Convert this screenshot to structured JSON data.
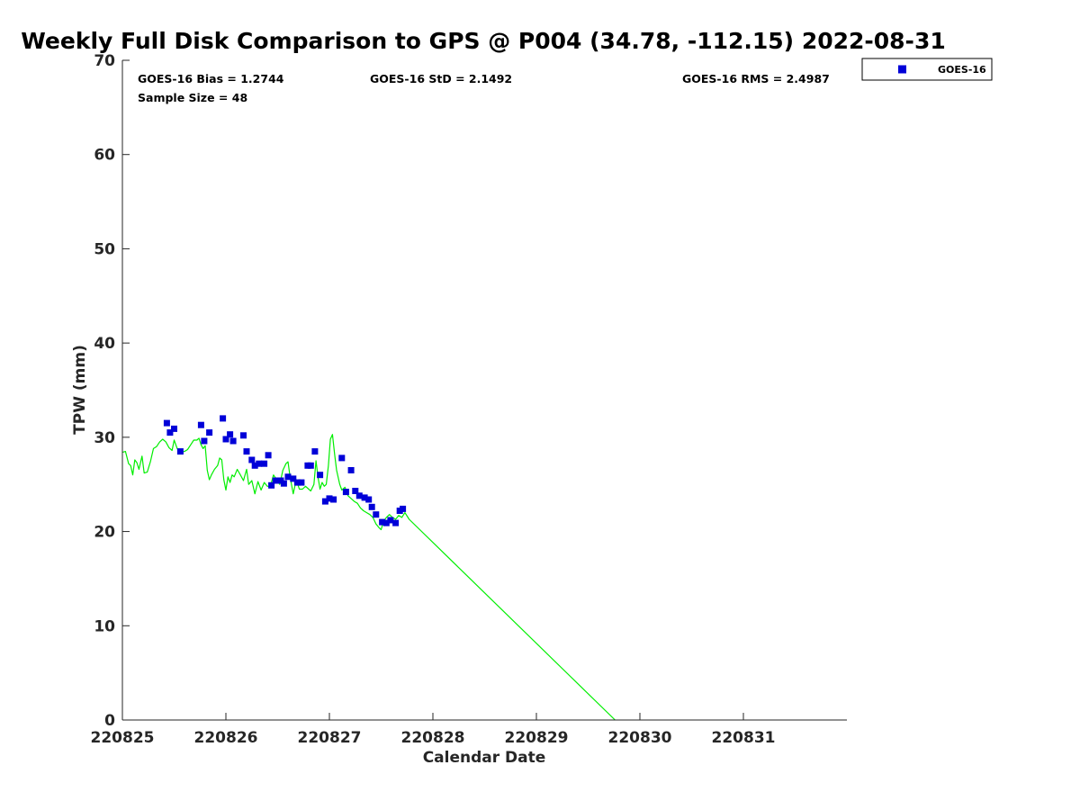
{
  "chart_data": {
    "type": "scatter",
    "title": "Weekly Full Disk Comparison to GPS @ P004 (34.78, -112.15) 2022-08-31",
    "xlabel": "Calendar Date",
    "ylabel": "TPW (mm)",
    "xlim": [
      0,
      7
    ],
    "ylim": [
      0,
      70
    ],
    "x_ticks": [
      {
        "value": 0,
        "label": "220825"
      },
      {
        "value": 1,
        "label": "220826"
      },
      {
        "value": 2,
        "label": "220827"
      },
      {
        "value": 3,
        "label": "220828"
      },
      {
        "value": 4,
        "label": "220829"
      },
      {
        "value": 5,
        "label": "220830"
      },
      {
        "value": 6,
        "label": "220831"
      }
    ],
    "y_ticks": [
      {
        "value": 0,
        "label": "0"
      },
      {
        "value": 10,
        "label": "10"
      },
      {
        "value": 20,
        "label": "20"
      },
      {
        "value": 30,
        "label": "30"
      },
      {
        "value": 40,
        "label": "40"
      },
      {
        "value": 50,
        "label": "50"
      },
      {
        "value": 60,
        "label": "60"
      },
      {
        "value": 70,
        "label": "70"
      }
    ],
    "stats": {
      "bias": "GOES-16 Bias = 1.2744",
      "std": "GOES-16 StD = 2.1492",
      "rms": "GOES-16 RMS = 2.4987",
      "sample": "Sample Size = 48"
    },
    "legend": {
      "label": "GOES-16",
      "position": "top-right, outside plot"
    },
    "series": [
      {
        "name": "GOES-16",
        "kind": "markers",
        "color": "#0000d8",
        "points": [
          [
            0.43,
            31.5
          ],
          [
            0.46,
            30.5
          ],
          [
            0.5,
            30.9
          ],
          [
            0.56,
            28.5
          ],
          [
            0.76,
            31.3
          ],
          [
            0.79,
            29.6
          ],
          [
            0.84,
            30.5
          ],
          [
            0.97,
            32.0
          ],
          [
            1.0,
            29.8
          ],
          [
            1.04,
            30.3
          ],
          [
            1.07,
            29.6
          ],
          [
            1.17,
            30.2
          ],
          [
            1.2,
            28.5
          ],
          [
            1.25,
            27.6
          ],
          [
            1.28,
            27.0
          ],
          [
            1.32,
            27.2
          ],
          [
            1.37,
            27.2
          ],
          [
            1.41,
            28.1
          ],
          [
            1.44,
            24.9
          ],
          [
            1.48,
            25.4
          ],
          [
            1.53,
            25.4
          ],
          [
            1.56,
            25.1
          ],
          [
            1.6,
            25.8
          ],
          [
            1.65,
            25.6
          ],
          [
            1.69,
            25.2
          ],
          [
            1.73,
            25.2
          ],
          [
            1.79,
            27.0
          ],
          [
            1.82,
            27.0
          ],
          [
            1.86,
            28.5
          ],
          [
            1.91,
            26.0
          ],
          [
            1.96,
            23.2
          ],
          [
            2.0,
            23.5
          ],
          [
            2.04,
            23.4
          ],
          [
            2.12,
            27.8
          ],
          [
            2.16,
            24.2
          ],
          [
            2.21,
            26.5
          ],
          [
            2.25,
            24.3
          ],
          [
            2.29,
            23.8
          ],
          [
            2.34,
            23.6
          ],
          [
            2.38,
            23.4
          ],
          [
            2.41,
            22.6
          ],
          [
            2.45,
            21.8
          ],
          [
            2.51,
            21.0
          ],
          [
            2.55,
            20.9
          ],
          [
            2.59,
            21.2
          ],
          [
            2.64,
            20.9
          ],
          [
            2.68,
            22.2
          ],
          [
            2.71,
            22.4
          ]
        ]
      },
      {
        "name": "GPS",
        "kind": "line",
        "color": "#00ee00",
        "points": [
          [
            0.0,
            28.4
          ],
          [
            0.03,
            28.5
          ],
          [
            0.06,
            27.2
          ],
          [
            0.08,
            27.0
          ],
          [
            0.1,
            26.0
          ],
          [
            0.12,
            27.6
          ],
          [
            0.14,
            27.3
          ],
          [
            0.16,
            26.6
          ],
          [
            0.19,
            28.0
          ],
          [
            0.21,
            26.2
          ],
          [
            0.24,
            26.3
          ],
          [
            0.27,
            27.4
          ],
          [
            0.3,
            28.8
          ],
          [
            0.33,
            29.0
          ],
          [
            0.36,
            29.5
          ],
          [
            0.39,
            29.8
          ],
          [
            0.42,
            29.5
          ],
          [
            0.45,
            28.9
          ],
          [
            0.48,
            28.6
          ],
          [
            0.5,
            29.7
          ],
          [
            0.53,
            28.8
          ],
          [
            0.56,
            28.4
          ],
          [
            0.6,
            28.5
          ],
          [
            0.63,
            28.7
          ],
          [
            0.66,
            29.2
          ],
          [
            0.69,
            29.7
          ],
          [
            0.72,
            29.7
          ],
          [
            0.74,
            29.9
          ],
          [
            0.76,
            29.2
          ],
          [
            0.78,
            28.8
          ],
          [
            0.8,
            29.1
          ],
          [
            0.82,
            26.5
          ],
          [
            0.84,
            25.5
          ],
          [
            0.86,
            26.0
          ],
          [
            0.89,
            26.6
          ],
          [
            0.92,
            27.0
          ],
          [
            0.94,
            27.8
          ],
          [
            0.96,
            27.6
          ],
          [
            0.98,
            25.5
          ],
          [
            1.0,
            24.4
          ],
          [
            1.02,
            25.8
          ],
          [
            1.04,
            25.2
          ],
          [
            1.06,
            26.0
          ],
          [
            1.08,
            25.8
          ],
          [
            1.11,
            26.6
          ],
          [
            1.14,
            26.0
          ],
          [
            1.17,
            25.4
          ],
          [
            1.2,
            26.6
          ],
          [
            1.22,
            25.0
          ],
          [
            1.25,
            25.4
          ],
          [
            1.28,
            24.0
          ],
          [
            1.31,
            25.3
          ],
          [
            1.34,
            24.4
          ],
          [
            1.37,
            25.2
          ],
          [
            1.4,
            24.8
          ],
          [
            1.43,
            24.8
          ],
          [
            1.46,
            26.0
          ],
          [
            1.49,
            25.5
          ],
          [
            1.52,
            25.0
          ],
          [
            1.55,
            26.5
          ],
          [
            1.58,
            27.2
          ],
          [
            1.6,
            27.4
          ],
          [
            1.62,
            25.8
          ],
          [
            1.65,
            24.0
          ],
          [
            1.68,
            25.5
          ],
          [
            1.71,
            24.5
          ],
          [
            1.74,
            24.5
          ],
          [
            1.77,
            24.8
          ],
          [
            1.8,
            24.5
          ],
          [
            1.82,
            24.3
          ],
          [
            1.85,
            25.0
          ],
          [
            1.87,
            27.5
          ],
          [
            1.89,
            25.8
          ],
          [
            1.91,
            24.5
          ],
          [
            1.93,
            25.2
          ],
          [
            1.95,
            24.8
          ],
          [
            1.97,
            25.0
          ],
          [
            1.99,
            27.0
          ],
          [
            2.01,
            29.8
          ],
          [
            2.03,
            30.3
          ],
          [
            2.05,
            28.2
          ],
          [
            2.07,
            26.5
          ],
          [
            2.1,
            25.0
          ],
          [
            2.12,
            24.4
          ],
          [
            2.15,
            24.7
          ],
          [
            2.18,
            23.8
          ],
          [
            2.21,
            23.5
          ],
          [
            2.24,
            23.2
          ],
          [
            2.27,
            23.0
          ],
          [
            2.3,
            22.5
          ],
          [
            2.33,
            22.2
          ],
          [
            2.36,
            22.0
          ],
          [
            2.39,
            21.8
          ],
          [
            2.42,
            21.5
          ],
          [
            2.45,
            20.8
          ],
          [
            2.48,
            20.4
          ],
          [
            2.5,
            20.2
          ],
          [
            2.52,
            21.0
          ],
          [
            2.55,
            21.5
          ],
          [
            2.58,
            21.8
          ],
          [
            2.61,
            21.5
          ],
          [
            2.64,
            21.3
          ],
          [
            2.67,
            21.7
          ],
          [
            2.7,
            21.5
          ],
          [
            2.73,
            22.0
          ],
          [
            2.77,
            21.3
          ],
          [
            4.76,
            0.0
          ]
        ]
      }
    ]
  },
  "colors": {
    "marker": "#0000d8",
    "line": "#00ee00",
    "axis": "#262626"
  }
}
